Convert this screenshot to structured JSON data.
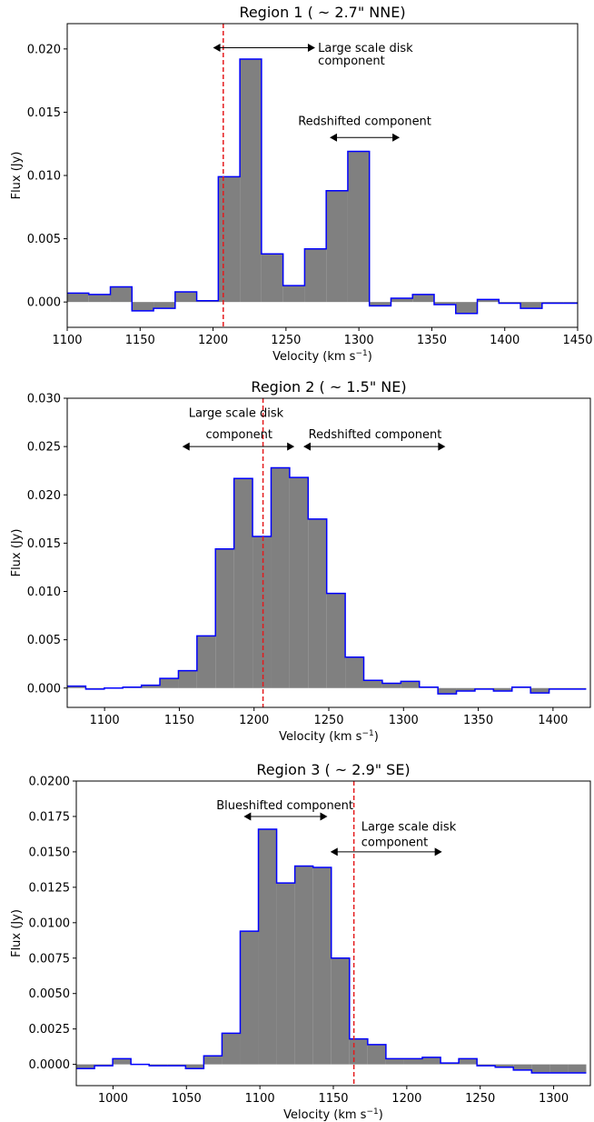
{
  "chart_data": [
    {
      "type": "bar",
      "title": "Region 1 ($\\sim$2.7\" NNE)",
      "title_display": "Region 1 ( ~ 2.7\" NNE)",
      "xlabel": "Velocity (km s$^{-1}$)",
      "xlabel_base": "Velocity (km s",
      "xlabel_sup": "−1",
      "xlabel_end": ")",
      "ylabel": "Flux (Jy)",
      "xlim": [
        1100,
        1450
      ],
      "ylim": [
        -0.002,
        0.022
      ],
      "xticks": [
        "1100",
        "1150",
        "1200",
        "1250",
        "1300",
        "1350",
        "1400",
        "1450"
      ],
      "yticks": [
        "0.000",
        "0.005",
        "0.010",
        "0.015",
        "0.020"
      ],
      "bin_width": 14.8,
      "x": [
        1100,
        1114.8,
        1129.6,
        1144.4,
        1159.2,
        1174,
        1188.8,
        1203.6,
        1218.4,
        1233.2,
        1248,
        1262.8,
        1277.6,
        1292.4,
        1307.2,
        1322,
        1336.8,
        1351.6,
        1366.4,
        1381.2,
        1396,
        1410.8,
        1425.6,
        1440.4
      ],
      "values": [
        0.0007,
        0.0006,
        0.0012,
        -0.0007,
        -0.0005,
        0.0008,
        0.0001,
        0.0099,
        0.0192,
        0.0038,
        0.0013,
        0.0042,
        0.0088,
        0.0119,
        -0.0003,
        0.0003,
        0.0006,
        -0.0002,
        -0.0009,
        0.0002,
        -0.0001,
        -0.0005,
        -0.0001,
        -0.0001
      ],
      "vline": 1207,
      "annotations": [
        {
          "lines": [
            "Large scale disk",
            "component"
          ],
          "arrow": [
            1200,
            1270
          ],
          "arrow_y": 0.0201,
          "text_x": 1272,
          "text_y": [
            0.0201,
            0.0191
          ],
          "anchor": "start"
        },
        {
          "lines": [
            "Redshifted component"
          ],
          "arrow": [
            1280,
            1328
          ],
          "arrow_y": 0.013,
          "text_x": 1304,
          "text_y": [
            0.0143
          ],
          "anchor": "middle"
        }
      ]
    },
    {
      "type": "bar",
      "title": "Region 2 ($\\sim$1.5\" NE)",
      "title_display": "Region 2 ( ~ 1.5\" NE)",
      "xlabel": "Velocity (km s$^{-1}$)",
      "xlabel_base": "Velocity (km s",
      "xlabel_sup": "−1",
      "xlabel_end": ")",
      "ylabel": "Flux (Jy)",
      "xlim": [
        1075,
        1425
      ],
      "ylim": [
        -0.002,
        0.03
      ],
      "xticks": [
        "1100",
        "1150",
        "1200",
        "1250",
        "1300",
        "1350",
        "1400"
      ],
      "yticks": [
        "0.000",
        "0.005",
        "0.010",
        "0.015",
        "0.020",
        "0.025",
        "0.030"
      ],
      "bin_width": 12.4,
      "x": [
        1075,
        1087.4,
        1099.8,
        1112.2,
        1124.6,
        1137,
        1149.4,
        1161.8,
        1174.2,
        1186.6,
        1199,
        1211.4,
        1223.8,
        1236.2,
        1248.6,
        1261,
        1273.4,
        1285.8,
        1298.2,
        1310.6,
        1323,
        1335.4,
        1347.8,
        1360.2,
        1372.6,
        1385,
        1397.4,
        1409.8
      ],
      "values": [
        0.0002,
        -0.0001,
        0.0,
        0.0001,
        0.0003,
        0.001,
        0.0018,
        0.0054,
        0.0144,
        0.0217,
        0.0157,
        0.0228,
        0.0218,
        0.0175,
        0.0098,
        0.0032,
        0.0008,
        0.0005,
        0.0007,
        0.0001,
        -0.0006,
        -0.0003,
        -0.0001,
        -0.0003,
        0.0001,
        -0.0005,
        -0.0001,
        -0.0001
      ],
      "vline": 1206,
      "annotations": [
        {
          "lines": [
            "Large scale disk",
            "component"
          ],
          "arrow": [
            1152,
            1227
          ],
          "arrow_y": 0.025,
          "text_x": [
            1188,
            1190
          ],
          "text_y": [
            0.0285,
            0.0263
          ],
          "anchor": "middle"
        },
        {
          "lines": [
            "Redshifted component"
          ],
          "arrow": [
            1233,
            1328
          ],
          "arrow_y": 0.025,
          "text_x": [
            1281
          ],
          "text_y": [
            0.0263
          ],
          "anchor": "middle"
        }
      ]
    },
    {
      "type": "bar",
      "title": "Region 3 ($\\sim$2.9\" SE)",
      "title_display": "Region 3 ( ~ 2.9\" SE)",
      "xlabel": "Velocity (km s$^{-1}$)",
      "xlabel_base": "Velocity (km s",
      "xlabel_sup": "−1",
      "xlabel_end": ")",
      "ylabel": "Flux (Jy)",
      "xlim": [
        975,
        1325
      ],
      "ylim": [
        -0.0015,
        0.02
      ],
      "xticks": [
        "1000",
        "1050",
        "1100",
        "1150",
        "1200",
        "1250",
        "1300"
      ],
      "yticks": [
        "0.0000",
        "0.0025",
        "0.0050",
        "0.0075",
        "0.0100",
        "0.0125",
        "0.0150",
        "0.0175",
        "0.0200"
      ],
      "bin_width": 12.4,
      "x": [
        975,
        987.4,
        999.8,
        1012.2,
        1024.6,
        1037,
        1049.4,
        1061.8,
        1074.2,
        1086.6,
        1099,
        1111.4,
        1123.8,
        1136.2,
        1148.6,
        1161,
        1173.4,
        1185.8,
        1198.2,
        1210.6,
        1223,
        1235.4,
        1247.8,
        1260.2,
        1272.6,
        1285,
        1297.4,
        1309.8
      ],
      "values": [
        -0.0003,
        -0.0001,
        0.0004,
        0.0,
        -0.0001,
        -0.0001,
        -0.0003,
        0.0006,
        0.0022,
        0.0094,
        0.0166,
        0.0128,
        0.014,
        0.0139,
        0.0075,
        0.0018,
        0.0014,
        0.0004,
        0.0004,
        0.0005,
        0.0001,
        0.0004,
        -0.0001,
        -0.0002,
        -0.0004,
        -0.0006,
        -0.0006,
        -0.0006
      ],
      "vline": 1164,
      "annotations": [
        {
          "lines": [
            "Blueshifted component"
          ],
          "arrow": [
            1089,
            1146
          ],
          "arrow_y": 0.0175,
          "text_x": [
            1117
          ],
          "text_y": [
            0.0183
          ],
          "anchor": "middle"
        },
        {
          "lines": [
            "Large scale disk",
            "component"
          ],
          "arrow": [
            1148,
            1224
          ],
          "arrow_y": 0.015,
          "text_x": [
            1169,
            1169
          ],
          "text_y": [
            0.0168,
            0.0157
          ],
          "anchor": "start"
        }
      ]
    }
  ],
  "colors": {
    "fill": "#808080",
    "outline": "#0000ff",
    "vline": "#e41a1c",
    "axis": "#000000"
  }
}
